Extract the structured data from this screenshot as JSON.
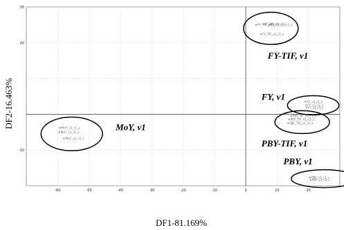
{
  "chart_data": {
    "type": "scatter",
    "xlabel": "DF1-81.169%",
    "ylabel": "DF2-16.463%",
    "xlim": [
      -70,
      30
    ],
    "ylim": [
      -20,
      30
    ],
    "xticks": [
      -60,
      -50,
      -40,
      -30,
      -20,
      -10,
      0,
      10,
      20
    ],
    "xtick_labels": [
      "-60",
      "-50",
      "-40",
      "-30",
      "-20",
      "-10",
      "0",
      "10",
      "20"
    ],
    "yticks": [
      -10,
      20,
      30
    ],
    "ytick_labels": [
      "-10",
      "20",
      "30"
    ],
    "grid": true,
    "groups": [
      {
        "name": "FY-TIF, v1",
        "ellipse": {
          "cx": 8,
          "cy": 24,
          "rx": 8.7,
          "ry": 4.5
        },
        "points": [
          {
            "x": 3.3,
            "y": 25.0,
            "label": "FY_TIF_v1_s"
          },
          {
            "x": 5.5,
            "y": 25.2,
            "label": "FY_TIF_v1_r2_s"
          },
          {
            "x": 7.5,
            "y": 25.0,
            "label": "FY_TIF_v1_r3_s"
          },
          {
            "x": 4.8,
            "y": 22.4,
            "label": "FY_TIF_v1_r1_s"
          }
        ]
      },
      {
        "name": "FY, v1",
        "ellipse": {
          "cx": 21.5,
          "cy": 2.5,
          "rx": 8.2,
          "ry": 2.7
        },
        "points": [
          {
            "x": 19.0,
            "y": 3.5,
            "label": "FY_v1_r1_s"
          },
          {
            "x": 19.2,
            "y": 2.5,
            "label": "FY_v1_r2_s"
          },
          {
            "x": 19.3,
            "y": 1.8,
            "label": "FY_v1_r3_s"
          }
        ]
      },
      {
        "name": "PBY-TIF, v1",
        "ellipse": {
          "cx": 18,
          "cy": -2.2,
          "rx": 8.7,
          "ry": 3.2
        },
        "points": [
          {
            "x": 14.5,
            "y": -0.5,
            "label": "PBY_TIF_v1_r1_s"
          },
          {
            "x": 13.8,
            "y": -1.5,
            "label": "PBY_TIF_v1_r2_s"
          },
          {
            "x": 13.5,
            "y": -2.5,
            "label": "PBY_TIF_v1_r3_s"
          }
        ]
      },
      {
        "name": "PBY, v1",
        "ellipse": {
          "cx": 25,
          "cy": -18,
          "rx": 10.5,
          "ry": 2.5
        },
        "points": [
          {
            "x": 20.5,
            "y": -17.7,
            "label": "PBY_v1_r1_s"
          },
          {
            "x": 20.7,
            "y": -18.4,
            "label": "PBY_v1_r2_s"
          }
        ]
      },
      {
        "name": "MoY, v1",
        "ellipse": {
          "cx": -55.5,
          "cy": -5.5,
          "rx": 9.8,
          "ry": 4.7
        },
        "points": [
          {
            "x": -59.3,
            "y": -3.8,
            "label": "MoY_v1_r1_s"
          },
          {
            "x": -59.5,
            "y": -5.0,
            "label": "MoY_v1_r2_s"
          },
          {
            "x": -58.0,
            "y": -6.8,
            "label": "MoY_v1_r3_s"
          }
        ]
      }
    ],
    "annotations": [
      {
        "text": "FY-TIF, v1",
        "x": 7.0,
        "y": 15.5
      },
      {
        "text": "FY, v1",
        "x": 5.0,
        "y": 4.0
      },
      {
        "text": "MoY, v1",
        "x": -41.5,
        "y": -4.5
      },
      {
        "text": "PBY-TIF, v1",
        "x": 5.0,
        "y": -9.0
      },
      {
        "text": "PBY, v1",
        "x": 12.0,
        "y": -14.0
      }
    ]
  }
}
